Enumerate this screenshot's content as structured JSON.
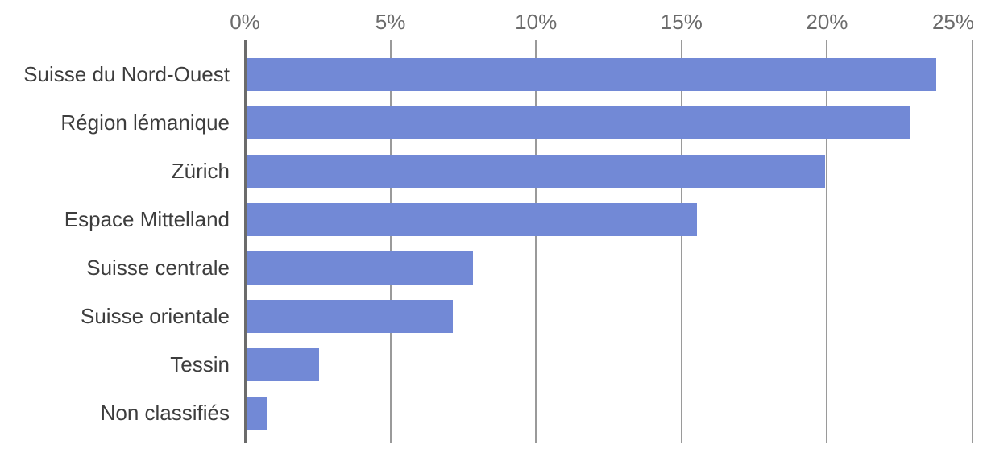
{
  "chart_data": {
    "type": "bar",
    "orientation": "horizontal",
    "categories": [
      "Suisse du Nord-Ouest",
      "Région lémanique",
      "Zürich",
      "Espace Mittelland",
      "Suisse centrale",
      "Suisse orientale",
      "Tessin",
      "Non classifiés"
    ],
    "values": [
      23.7,
      22.8,
      19.9,
      15.5,
      7.8,
      7.1,
      2.5,
      0.7
    ],
    "unit": "%",
    "x_tick_labels": [
      "0%",
      "5%",
      "10%",
      "15%",
      "20%",
      "25%"
    ],
    "x_tick_values": [
      0,
      5,
      10,
      15,
      20,
      25
    ],
    "xlim": [
      0,
      25
    ],
    "xlabel": "",
    "ylabel": "",
    "legend": "none",
    "grid": "vertical",
    "colors": {
      "bar": "#7289d6",
      "grid_line": "#9a9a9a",
      "zero_axis_line": "#6b6b6b",
      "tick_label_text": "#6b6b6b",
      "category_label_text": "#3d3d3d",
      "background": "#ffffff"
    }
  }
}
